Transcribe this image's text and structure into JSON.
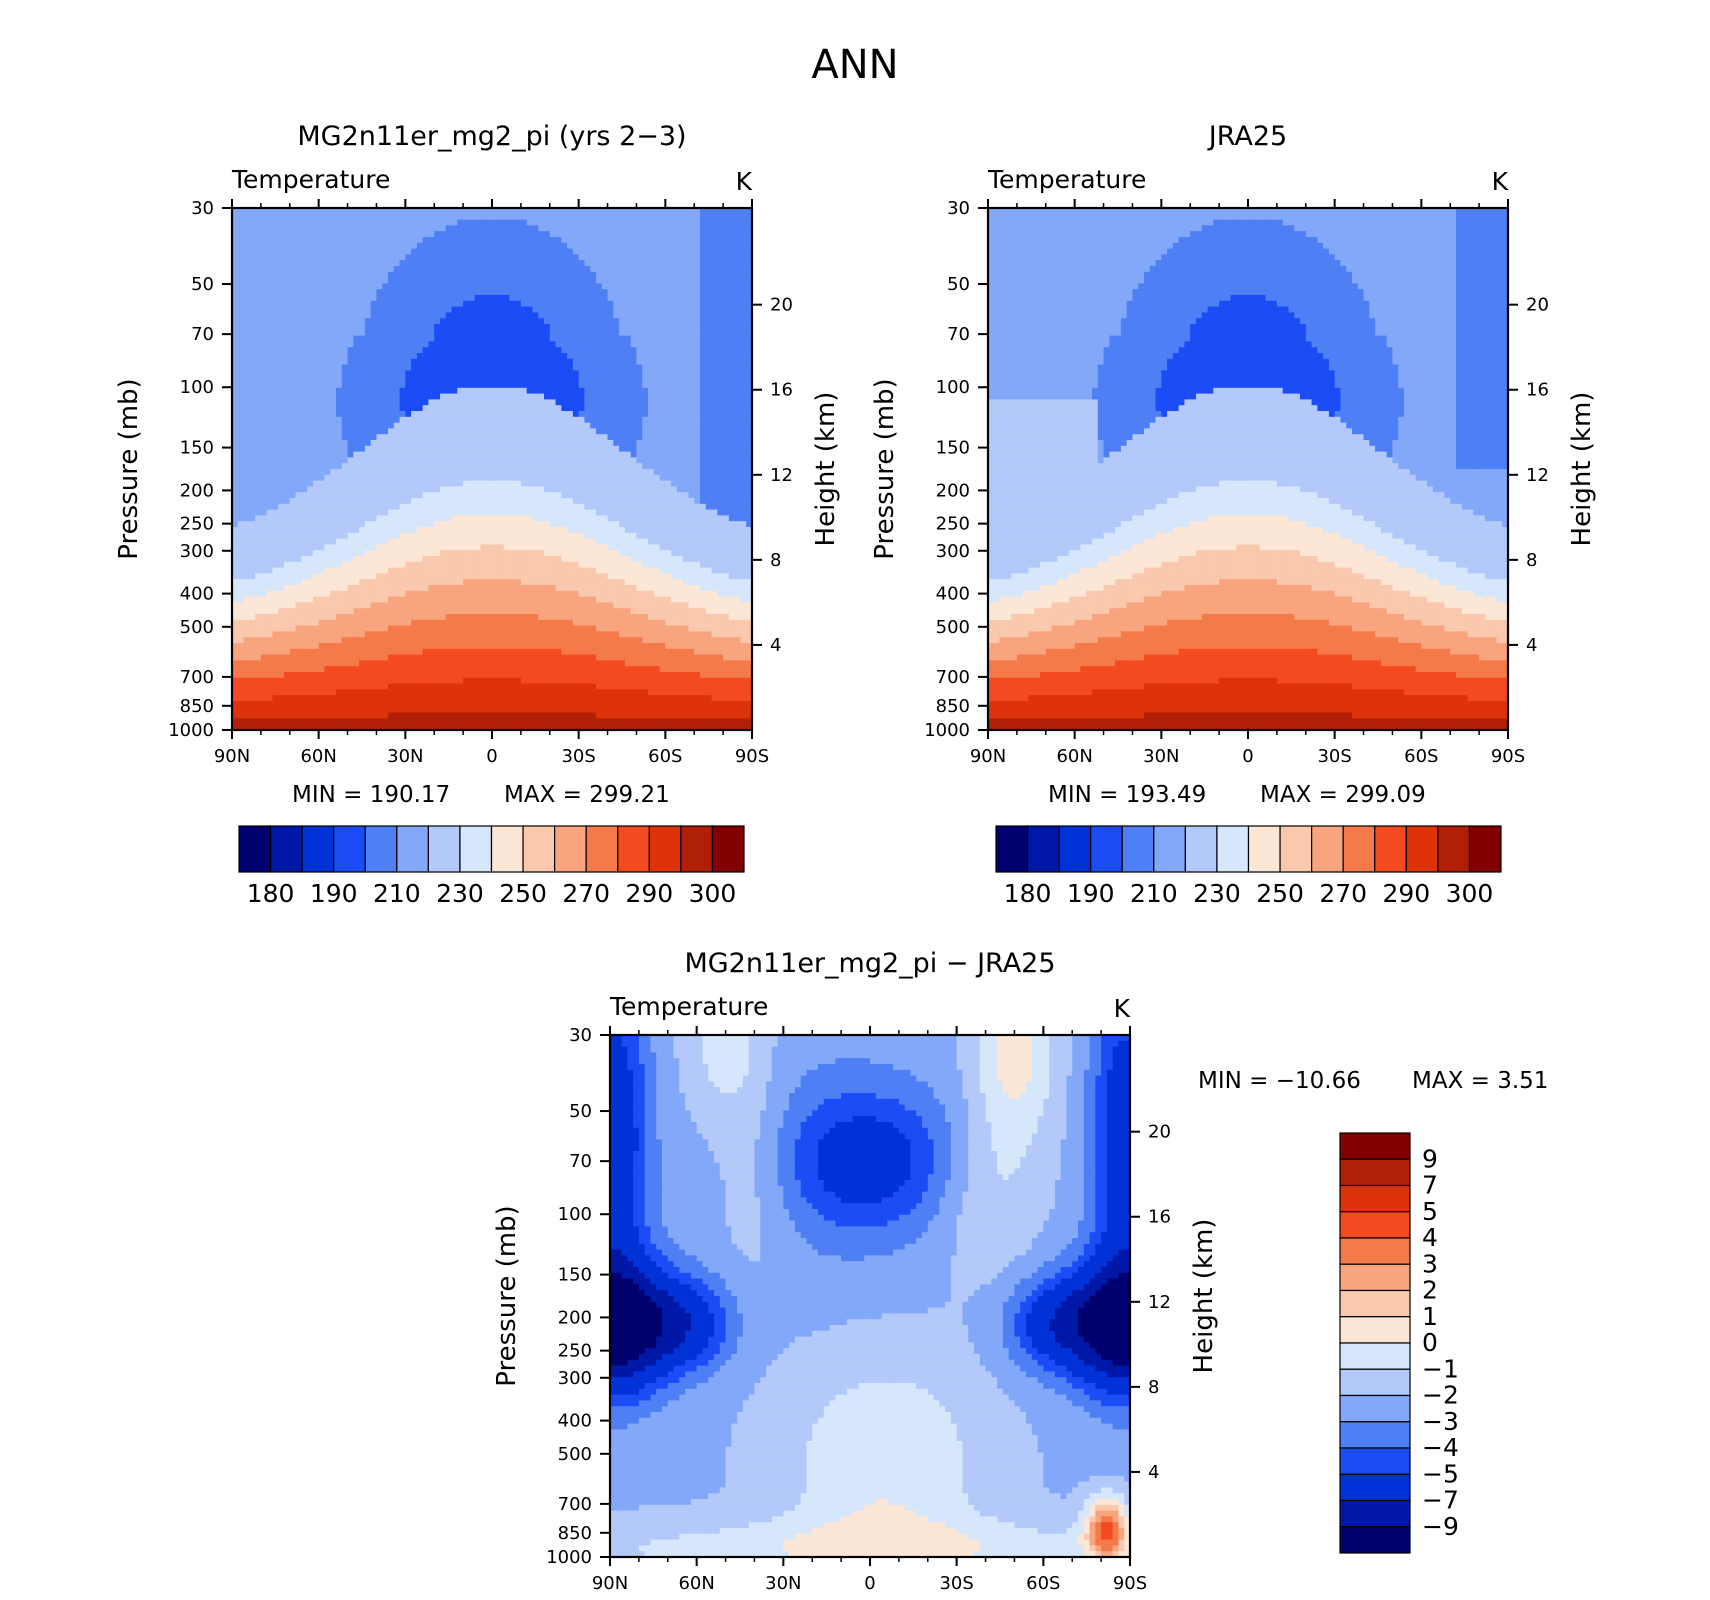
{
  "figure": {
    "main_title": "ANN"
  },
  "chart_data": [
    {
      "type": "heatmap",
      "id": "model",
      "title": "MG2n11er_mg2_pi (yrs 2−3)",
      "variable": "Temperature",
      "units": "K",
      "xlabel": "",
      "ylabel": "Pressure (mb)",
      "ylabel_right": "Height (km)",
      "x_ticks": [
        "90N",
        "60N",
        "30N",
        "0",
        "30S",
        "60S",
        "90S"
      ],
      "x_values": [
        90,
        60,
        30,
        0,
        -30,
        -60,
        -90
      ],
      "y_ticks": [
        "30",
        "50",
        "70",
        "100",
        "150",
        "200",
        "250",
        "300",
        "400",
        "500",
        "700",
        "850",
        "1000"
      ],
      "y_values": [
        30,
        50,
        70,
        100,
        150,
        200,
        250,
        300,
        400,
        500,
        700,
        850,
        1000
      ],
      "y_scale": "log-pressure",
      "y_range": [
        1000,
        30
      ],
      "right_ticks": [
        "20",
        "16",
        "12",
        "8",
        "4"
      ],
      "right_values": [
        20,
        16,
        12,
        8,
        4
      ],
      "stats": {
        "min_label": "MIN = 190.17",
        "max_label": "MAX = 299.21",
        "min": 190.17,
        "max": 299.21
      },
      "colorbar": {
        "orientation": "horizontal",
        "colors": [
          "#00006e",
          "#0018a8",
          "#0032d8",
          "#1b4cf6",
          "#4e7ff5",
          "#84a8f9",
          "#b3c9fa",
          "#d6e6fb",
          "#fce7d7",
          "#f9c8ad",
          "#f8a47f",
          "#f57a4a",
          "#f44a1f",
          "#de3208",
          "#b21f07",
          "#820000"
        ],
        "labels": [
          "180",
          "190",
          "210",
          "230",
          "250",
          "270",
          "290",
          "300"
        ],
        "levels": [
          180,
          190,
          210,
          230,
          250,
          270,
          290,
          300
        ]
      },
      "contour_fill": {
        "base": 5,
        "blobs": [
          {
            "x": 0,
            "p": 100,
            "sx": 30,
            "sz": 0.55,
            "level": 1
          },
          {
            "x": 0,
            "p": 90,
            "sx": 23,
            "sz": 0.38,
            "level": 1
          }
        ],
        "surface_warm": {
          "center": 0,
          "top_lat": 90,
          "bands": [
            8,
            9,
            10,
            11,
            12,
            13,
            14
          ]
        }
      }
    },
    {
      "type": "heatmap",
      "id": "obs",
      "title": "JRA25",
      "variable": "Temperature",
      "units": "K",
      "xlabel": "",
      "ylabel": "Pressure (mb)",
      "ylabel_right": "Height (km)",
      "x_ticks": [
        "90N",
        "60N",
        "30N",
        "0",
        "30S",
        "60S",
        "90S"
      ],
      "x_values": [
        90,
        60,
        30,
        0,
        -30,
        -60,
        -90
      ],
      "y_ticks": [
        "30",
        "50",
        "70",
        "100",
        "150",
        "200",
        "250",
        "300",
        "400",
        "500",
        "700",
        "850",
        "1000"
      ],
      "y_values": [
        30,
        50,
        70,
        100,
        150,
        200,
        250,
        300,
        400,
        500,
        700,
        850,
        1000
      ],
      "y_scale": "log-pressure",
      "y_range": [
        1000,
        30
      ],
      "right_ticks": [
        "20",
        "16",
        "12",
        "8",
        "4"
      ],
      "right_values": [
        20,
        16,
        12,
        8,
        4
      ],
      "stats": {
        "min_label": "MIN = 193.49",
        "max_label": "MAX = 299.09",
        "min": 193.49,
        "max": 299.09
      },
      "colorbar": {
        "orientation": "horizontal",
        "colors": [
          "#00006e",
          "#0018a8",
          "#0032d8",
          "#1b4cf6",
          "#4e7ff5",
          "#84a8f9",
          "#b3c9fa",
          "#d6e6fb",
          "#fce7d7",
          "#f9c8ad",
          "#f8a47f",
          "#f57a4a",
          "#f44a1f",
          "#de3208",
          "#b21f07",
          "#820000"
        ],
        "labels": [
          "180",
          "190",
          "210",
          "230",
          "250",
          "270",
          "290",
          "300"
        ],
        "levels": [
          180,
          190,
          210,
          230,
          250,
          270,
          290,
          300
        ]
      }
    },
    {
      "type": "heatmap",
      "id": "diff",
      "title": "MG2n11er_mg2_pi − JRA25",
      "variable": "Temperature",
      "units": "K",
      "xlabel": "",
      "ylabel": "Pressure (mb)",
      "ylabel_right": "Height (km)",
      "x_ticks": [
        "90N",
        "60N",
        "30N",
        "0",
        "30S",
        "60S",
        "90S"
      ],
      "x_values": [
        90,
        60,
        30,
        0,
        -30,
        -60,
        -90
      ],
      "y_ticks": [
        "30",
        "50",
        "70",
        "100",
        "150",
        "200",
        "250",
        "300",
        "400",
        "500",
        "700",
        "850",
        "1000"
      ],
      "y_values": [
        30,
        50,
        70,
        100,
        150,
        200,
        250,
        300,
        400,
        500,
        700,
        850,
        1000
      ],
      "y_scale": "log-pressure",
      "y_range": [
        1000,
        30
      ],
      "right_ticks": [
        "20",
        "16",
        "12",
        "8",
        "4"
      ],
      "right_values": [
        20,
        16,
        12,
        8,
        4
      ],
      "stats": {
        "min_label": "MIN = −10.66",
        "max_label": "MAX = 3.51",
        "min": -10.66,
        "max": 3.51
      },
      "colorbar": {
        "orientation": "vertical",
        "colors": [
          "#820000",
          "#b21f07",
          "#de3208",
          "#f44a1f",
          "#f57a4a",
          "#f8a47f",
          "#f9c8ad",
          "#fce7d7",
          "#d6e6fb",
          "#b3c9fa",
          "#84a8f9",
          "#4e7ff5",
          "#1b4cf6",
          "#0032d8",
          "#0018a8",
          "#00006e"
        ],
        "labels": [
          "9",
          "7",
          "5",
          "4",
          "3",
          "2",
          "1",
          "0",
          "−1",
          "−2",
          "−3",
          "−4",
          "−5",
          "−7",
          "−9"
        ],
        "levels": [
          9,
          7,
          5,
          4,
          3,
          2,
          1,
          0,
          -1,
          -2,
          -3,
          -4,
          -5,
          -7,
          -9
        ]
      }
    }
  ]
}
